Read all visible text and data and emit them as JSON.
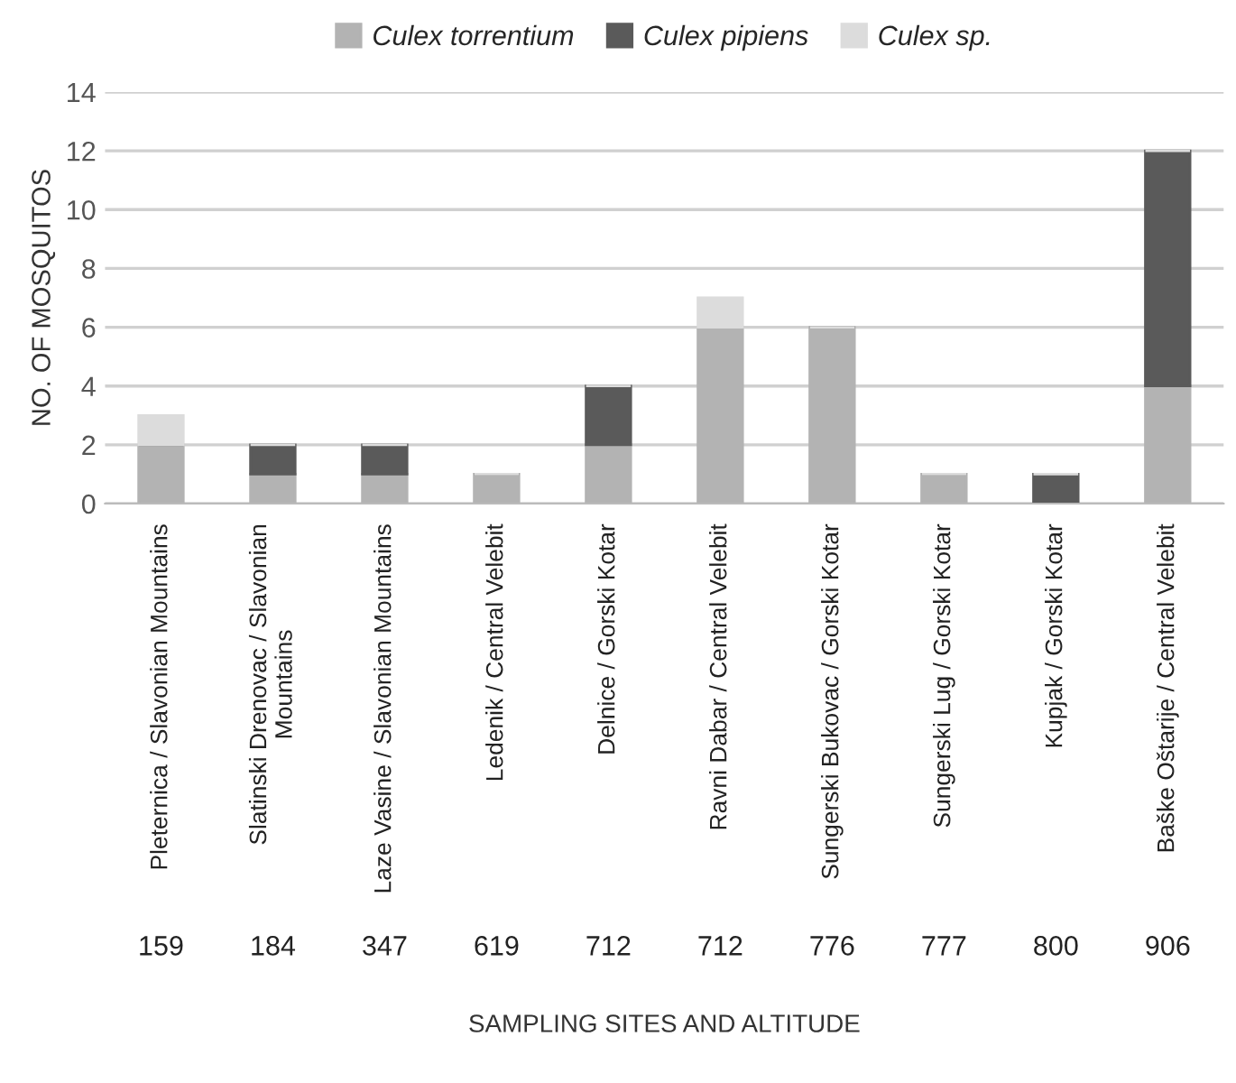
{
  "chart_data": {
    "type": "bar",
    "stacked": true,
    "xlabel": "SAMPLING SITES AND ALTITUDE",
    "ylabel": "NO. OF MOSQUITOS",
    "categories": [
      "Pleternica / Slavonian Mountains",
      "Slatinski Drenovac / Slavonian\nMountains",
      "Laze Vasine / Slavonian Mountains",
      "Ledenik / Central Velebit",
      "Delnice / Gorski Kotar",
      "Ravni Dabar / Central Velebit",
      "Sungerski Bukovac / Gorski Kotar",
      "Sungerski Lug / Gorski Kotar",
      "Kupjak / Gorski Kotar",
      "Baške Oštarije / Central Velebit"
    ],
    "series": [
      {
        "name": "Culex torrentium",
        "color": "#b3b3b3",
        "values": [
          2,
          1,
          1,
          1,
          2,
          6,
          6,
          1,
          0,
          4
        ]
      },
      {
        "name": "Culex pipiens",
        "color": "#5a5a5a",
        "values": [
          0,
          1,
          1,
          0,
          2,
          0,
          0,
          0,
          1,
          8
        ]
      },
      {
        "name": "Culex sp.",
        "color": "#dcdcdc",
        "values": [
          1,
          0,
          0,
          0,
          0,
          1,
          0,
          0,
          0,
          0
        ]
      }
    ],
    "ylim": [
      0,
      14
    ],
    "yticks": [
      0,
      2,
      4,
      6,
      8,
      10,
      12,
      14
    ],
    "grid": "y",
    "legend": "top",
    "annotations": [
      "159",
      "184",
      "347",
      "619",
      "712",
      "712",
      "776",
      "777",
      "800",
      "906"
    ]
  }
}
